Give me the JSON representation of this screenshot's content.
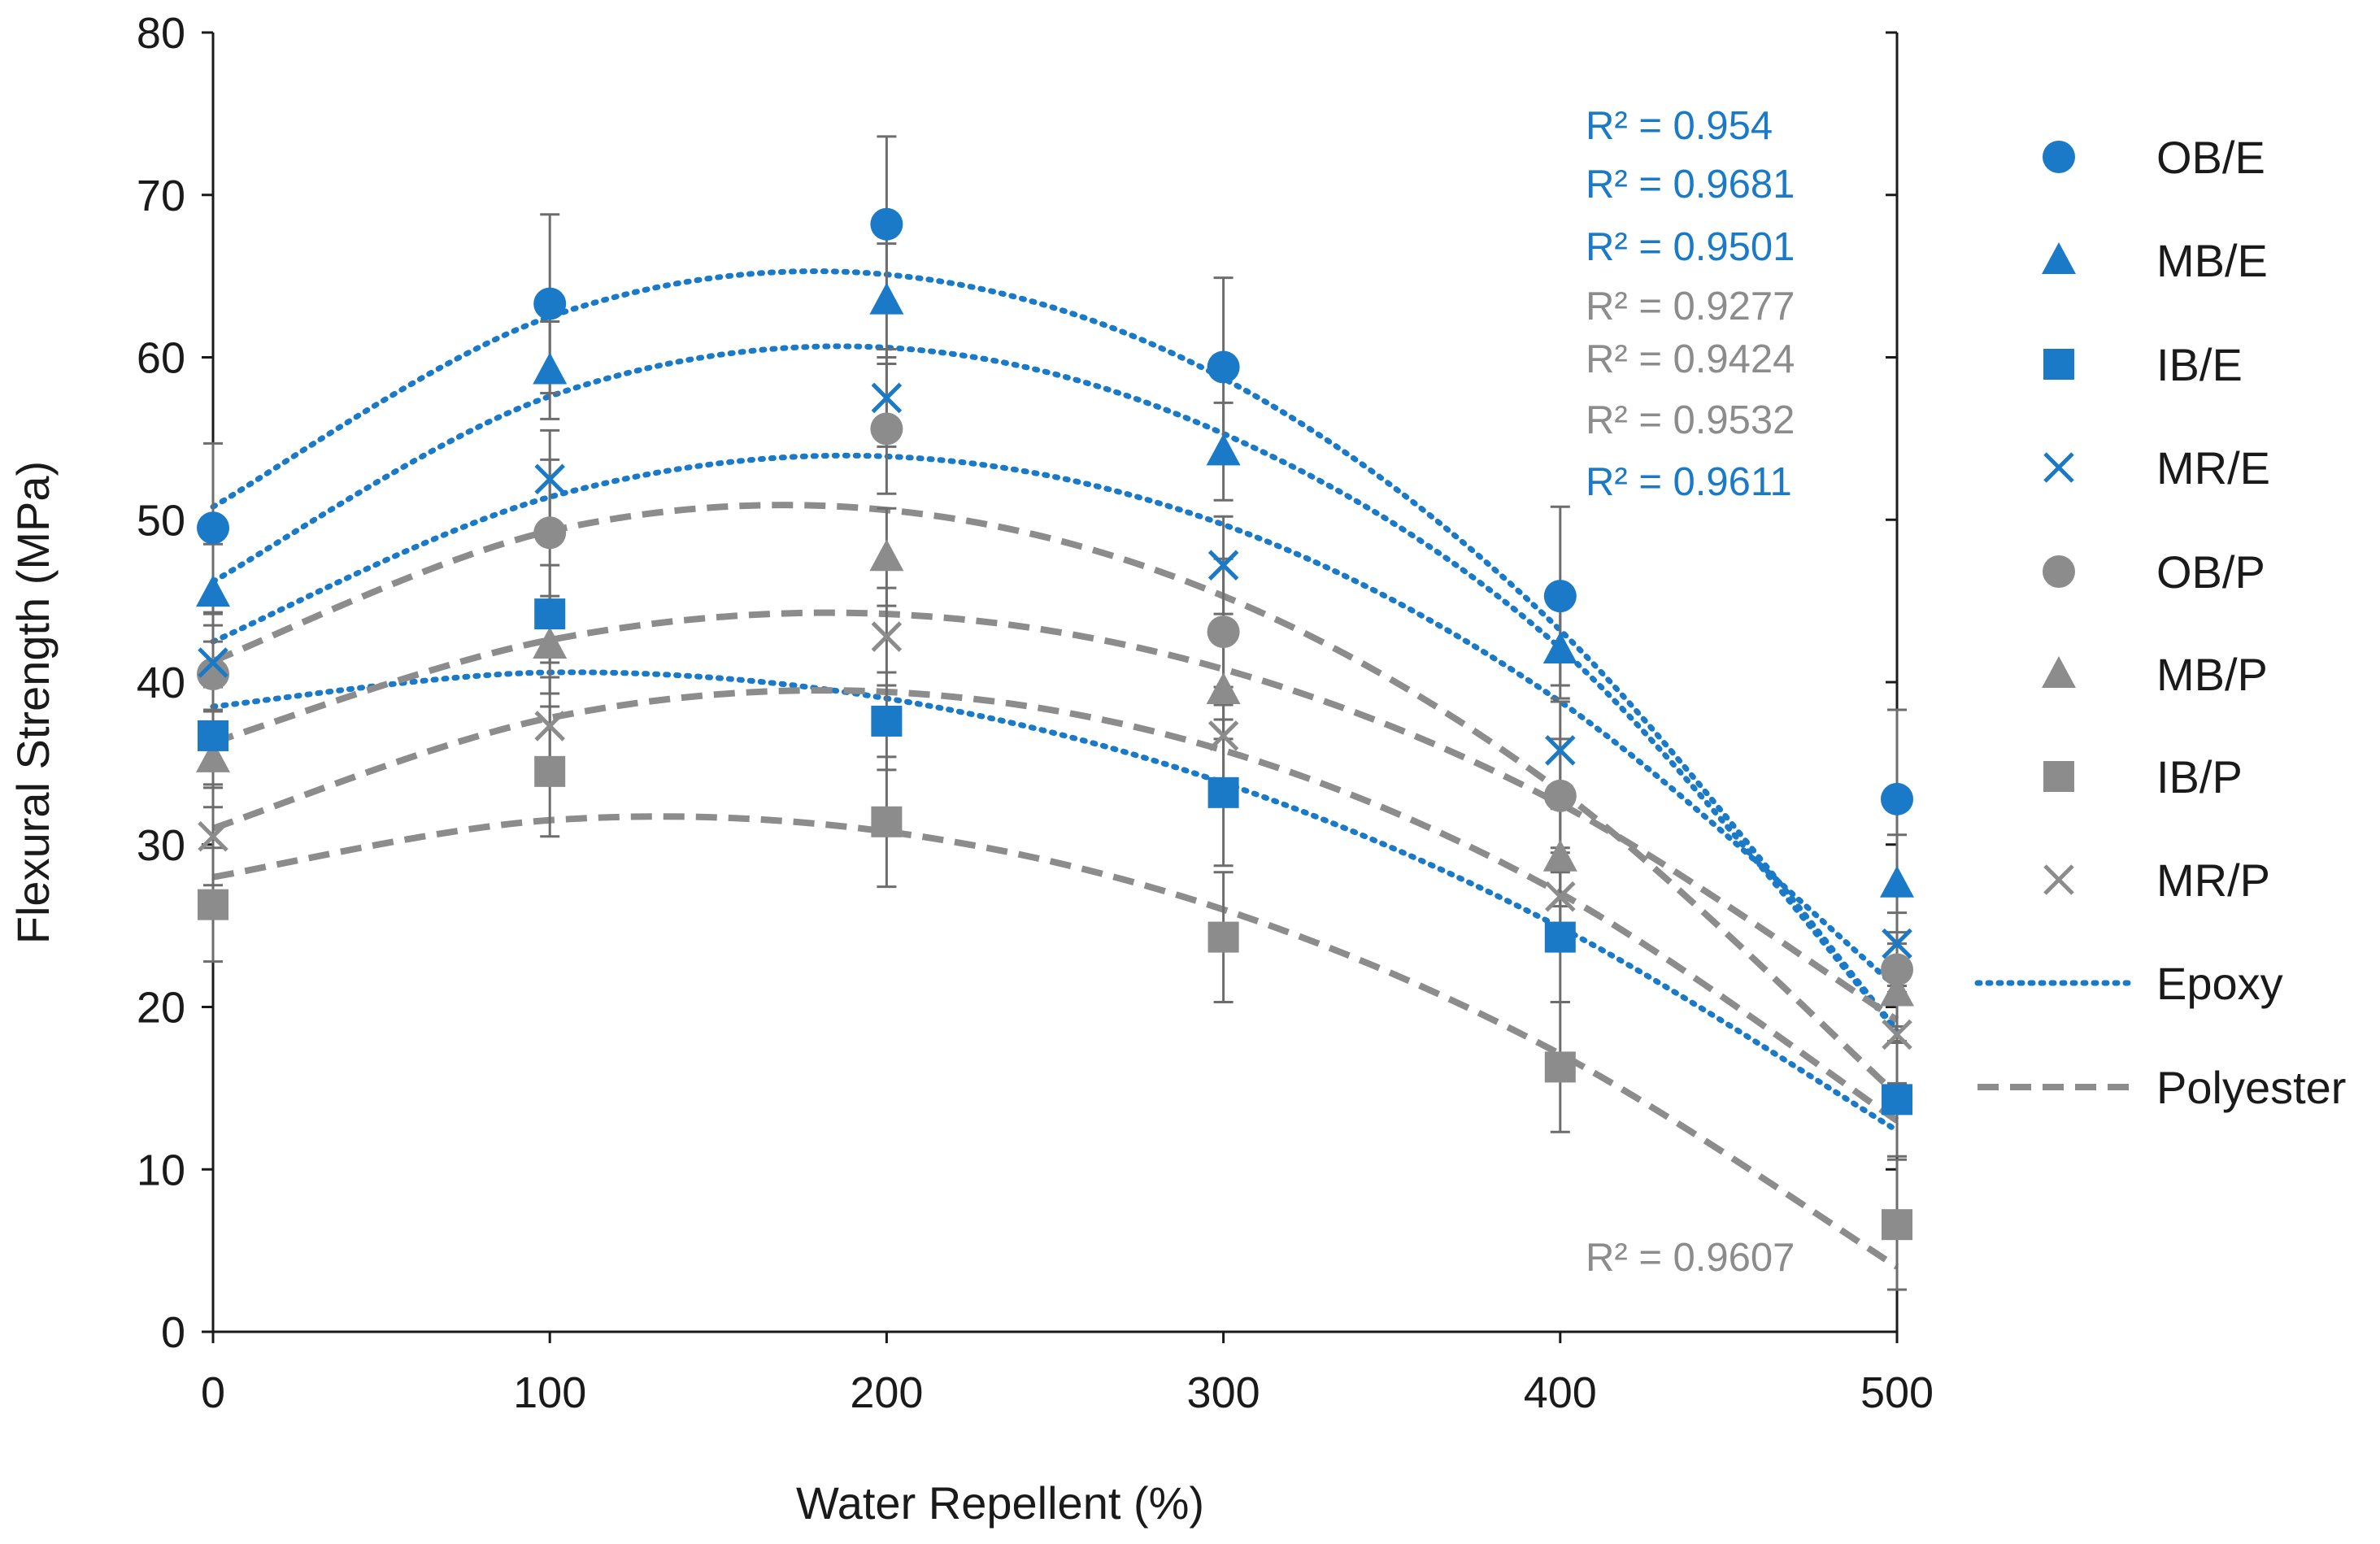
{
  "colors": {
    "epoxy": "#1a7ac7",
    "polyester": "#8c8c8c",
    "axis": "#1a1a1a",
    "errorbar": "#6d6d6d"
  },
  "chart_data": {
    "type": "scatter",
    "title": "",
    "xlabel": "Water Repellent (%)",
    "ylabel": "Flexural Strength (MPa)",
    "xlim": [
      0,
      500
    ],
    "ylim": [
      0,
      80
    ],
    "x": [
      0,
      100,
      200,
      300,
      400,
      500
    ],
    "x_ticks": [
      "0",
      "100",
      "200",
      "300",
      "400",
      "500"
    ],
    "y_ticks": [
      "0",
      "10",
      "20",
      "30",
      "40",
      "50",
      "60",
      "70",
      "80"
    ],
    "grid": false,
    "legend_position": "right",
    "series": [
      {
        "name": "OB/E",
        "group": "epoxy",
        "marker": "circle",
        "values": [
          49.5,
          63.3,
          68.2,
          59.4,
          45.3,
          32.8
        ],
        "errors": [
          5.2,
          5.5,
          5.4,
          5.5,
          5.5,
          5.5
        ],
        "r2": "R² = 0.954",
        "trend": [
          50.8,
          62.5,
          65.1,
          58.7,
          43.2,
          18.6
        ]
      },
      {
        "name": "MB/E",
        "group": "epoxy",
        "marker": "triangle",
        "values": [
          45.5,
          59.2,
          63.5,
          54.2,
          42.0,
          27.6
        ],
        "errors": [
          3.0,
          3.0,
          3.5,
          3.0,
          3.0,
          3.0
        ],
        "r2": "R² = 0.9681",
        "trend": [
          46.2,
          57.6,
          60.6,
          55.3,
          42.1,
          18.5
        ]
      },
      {
        "name": "IB/E",
        "group": "epoxy",
        "marker": "square",
        "values": [
          36.7,
          44.2,
          37.6,
          33.2,
          24.3,
          14.3
        ],
        "errors": [
          3.0,
          3.0,
          3.0,
          4.5,
          4.0,
          3.5
        ],
        "r2": "R² = 0.9501",
        "trend": [
          38.5,
          40.6,
          39.0,
          33.8,
          24.9,
          12.4
        ]
      },
      {
        "name": "MR/E",
        "group": "epoxy",
        "marker": "x",
        "values": [
          41.2,
          52.5,
          57.5,
          47.2,
          35.8,
          23.9
        ],
        "errors": [
          3.0,
          3.0,
          3.0,
          3.0,
          3.0,
          3.0
        ],
        "r2": "R² = 0.9611",
        "trend": [
          42.5,
          51.4,
          53.9,
          49.7,
          38.8,
          21.2
        ]
      },
      {
        "name": "OB/P",
        "group": "polyester",
        "marker": "circle",
        "values": [
          40.5,
          49.2,
          55.6,
          43.1,
          33.0,
          22.3
        ],
        "errors": [
          3.0,
          4.5,
          4.0,
          4.5,
          3.5,
          3.5
        ],
        "r2": "R² = 0.9277",
        "trend": [
          41.3,
          49.3,
          50.6,
          45.3,
          33.3,
          14.6
        ]
      },
      {
        "name": "MB/P",
        "group": "polyester",
        "marker": "triangle",
        "values": [
          35.3,
          42.3,
          47.7,
          39.5,
          29.2,
          20.9
        ],
        "errors": [
          3.0,
          3.0,
          3.0,
          3.0,
          3.0,
          3.0
        ],
        "r2": "R² = 0.9424",
        "trend": [
          36.3,
          42.6,
          44.2,
          40.8,
          32.5,
          19.2
        ]
      },
      {
        "name": "IB/P",
        "group": "polyester",
        "marker": "square",
        "values": [
          26.3,
          34.5,
          31.4,
          24.3,
          16.3,
          6.6
        ],
        "errors": [
          3.5,
          4.0,
          4.0,
          4.0,
          4.0,
          4.0
        ],
        "r2": "R² = 0.9607",
        "trend": [
          28.0,
          31.5,
          30.8,
          26.0,
          17.1,
          4.0
        ]
      },
      {
        "name": "MR/P",
        "group": "polyester",
        "marker": "x",
        "values": [
          30.5,
          37.3,
          42.8,
          36.7,
          26.8,
          18.3
        ],
        "errors": [
          3.0,
          3.0,
          3.0,
          3.0,
          3.0,
          3.0
        ],
        "r2": "R² = 0.9532",
        "trend": [
          31.0,
          37.8,
          39.4,
          35.8,
          27.0,
          13.0
        ]
      }
    ],
    "r2_labels": [
      {
        "text": "R² = 0.954",
        "group": "epoxy"
      },
      {
        "text": "R² = 0.9681",
        "group": "epoxy"
      },
      {
        "text": "R² = 0.9501",
        "group": "epoxy"
      },
      {
        "text": "R² = 0.9277",
        "group": "polyester"
      },
      {
        "text": "R² = 0.9424",
        "group": "polyester"
      },
      {
        "text": "R² = 0.9532",
        "group": "polyester"
      },
      {
        "text": "R² = 0.9611",
        "group": "epoxy"
      },
      {
        "text": "R² = 0.9607",
        "group": "polyester"
      }
    ],
    "legend": [
      {
        "label": "OB/E",
        "kind": "marker",
        "marker": "circle",
        "group": "epoxy"
      },
      {
        "label": "MB/E",
        "kind": "marker",
        "marker": "triangle",
        "group": "epoxy"
      },
      {
        "label": "IB/E",
        "kind": "marker",
        "marker": "square",
        "group": "epoxy"
      },
      {
        "label": "MR/E",
        "kind": "marker",
        "marker": "x",
        "group": "epoxy"
      },
      {
        "label": "OB/P",
        "kind": "marker",
        "marker": "circle",
        "group": "polyester"
      },
      {
        "label": "MB/P",
        "kind": "marker",
        "marker": "triangle",
        "group": "polyester"
      },
      {
        "label": "IB/P",
        "kind": "marker",
        "marker": "square",
        "group": "polyester"
      },
      {
        "label": "MR/P",
        "kind": "marker",
        "marker": "x",
        "group": "polyester"
      },
      {
        "label": "Epoxy",
        "kind": "line",
        "style": "dotted",
        "group": "epoxy"
      },
      {
        "label": "Polyester",
        "kind": "line",
        "style": "dashed",
        "group": "polyester"
      }
    ]
  }
}
